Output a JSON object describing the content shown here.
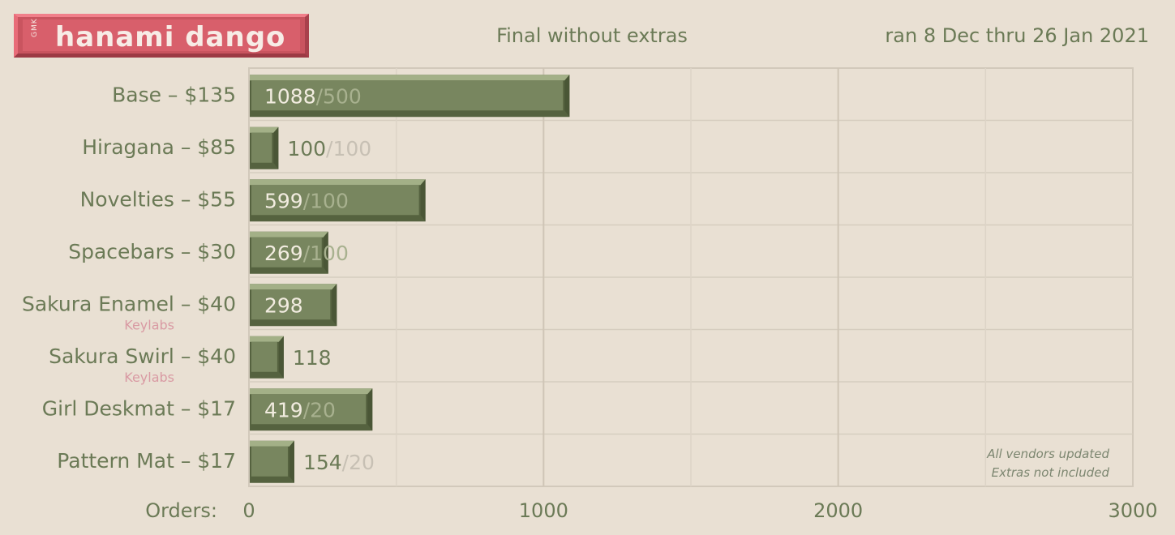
{
  "header": {
    "logo_prefix": "GMK",
    "logo_text": "hanami dango",
    "subtitle": "Final without extras",
    "date_range": "ran 8 Dec thru 26 Jan 2021"
  },
  "colors": {
    "background": "#e9e0d3",
    "bar": "#78865f",
    "text": "#6b7a56",
    "target": "#c7c0b4",
    "logo": "#d85f6b",
    "vendor_note": "#d99aa3"
  },
  "chart_data": {
    "type": "bar",
    "orientation": "horizontal",
    "title": "Final without extras",
    "xlabel": "Orders:",
    "xlim": [
      0,
      3000
    ],
    "xticks": [
      0,
      1000,
      2000,
      3000
    ],
    "grid": true,
    "categories": [
      "Base – $135",
      "Hiragana – $85",
      "Novelties – $55",
      "Spacebars – $30",
      "Sakura Enamel – $40",
      "Sakura Swirl – $40",
      "Girl Deskmat – $17",
      "Pattern Mat – $17"
    ],
    "category_notes": [
      "",
      "",
      "",
      "",
      "Keylabs",
      "Keylabs",
      "",
      ""
    ],
    "values": [
      1088,
      100,
      599,
      269,
      298,
      118,
      419,
      154
    ],
    "targets": [
      "/500",
      "/100",
      "/100",
      "/100",
      "",
      "",
      "/20",
      "/20"
    ],
    "annotations": [
      "All vendors updated",
      "Extras not included"
    ]
  }
}
